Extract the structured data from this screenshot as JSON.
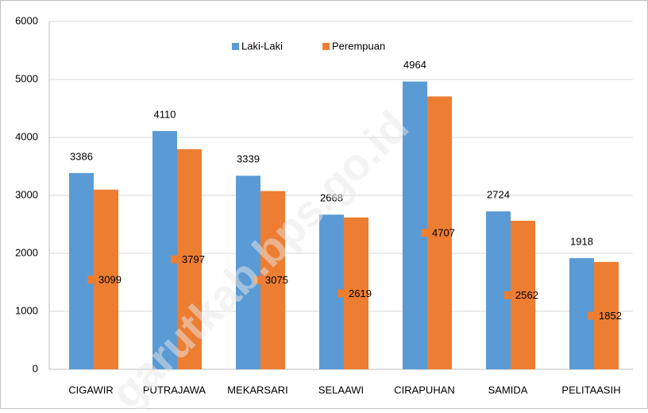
{
  "chart_data": {
    "type": "bar",
    "categories": [
      "CIGAWIR",
      "PUTRAJAWA",
      "MEKARSARI",
      "SELAAWI",
      "CIRAPUHAN",
      "SAMIDA",
      "PELITAASIH"
    ],
    "series": [
      {
        "name": "Laki-Laki",
        "color": "#5b9bd5",
        "values": [
          3386,
          4110,
          3339,
          2668,
          4964,
          2724,
          1918
        ]
      },
      {
        "name": "Perempuan",
        "color": "#ed7d31",
        "values": [
          3099,
          3797,
          3075,
          2619,
          4707,
          2562,
          1852
        ]
      }
    ],
    "ylim": [
      0,
      6000
    ],
    "yticks": [
      0,
      1000,
      2000,
      3000,
      4000,
      5000,
      6000
    ],
    "grid": true,
    "legend": "top",
    "watermark": "garutkab.bps.go.id"
  }
}
